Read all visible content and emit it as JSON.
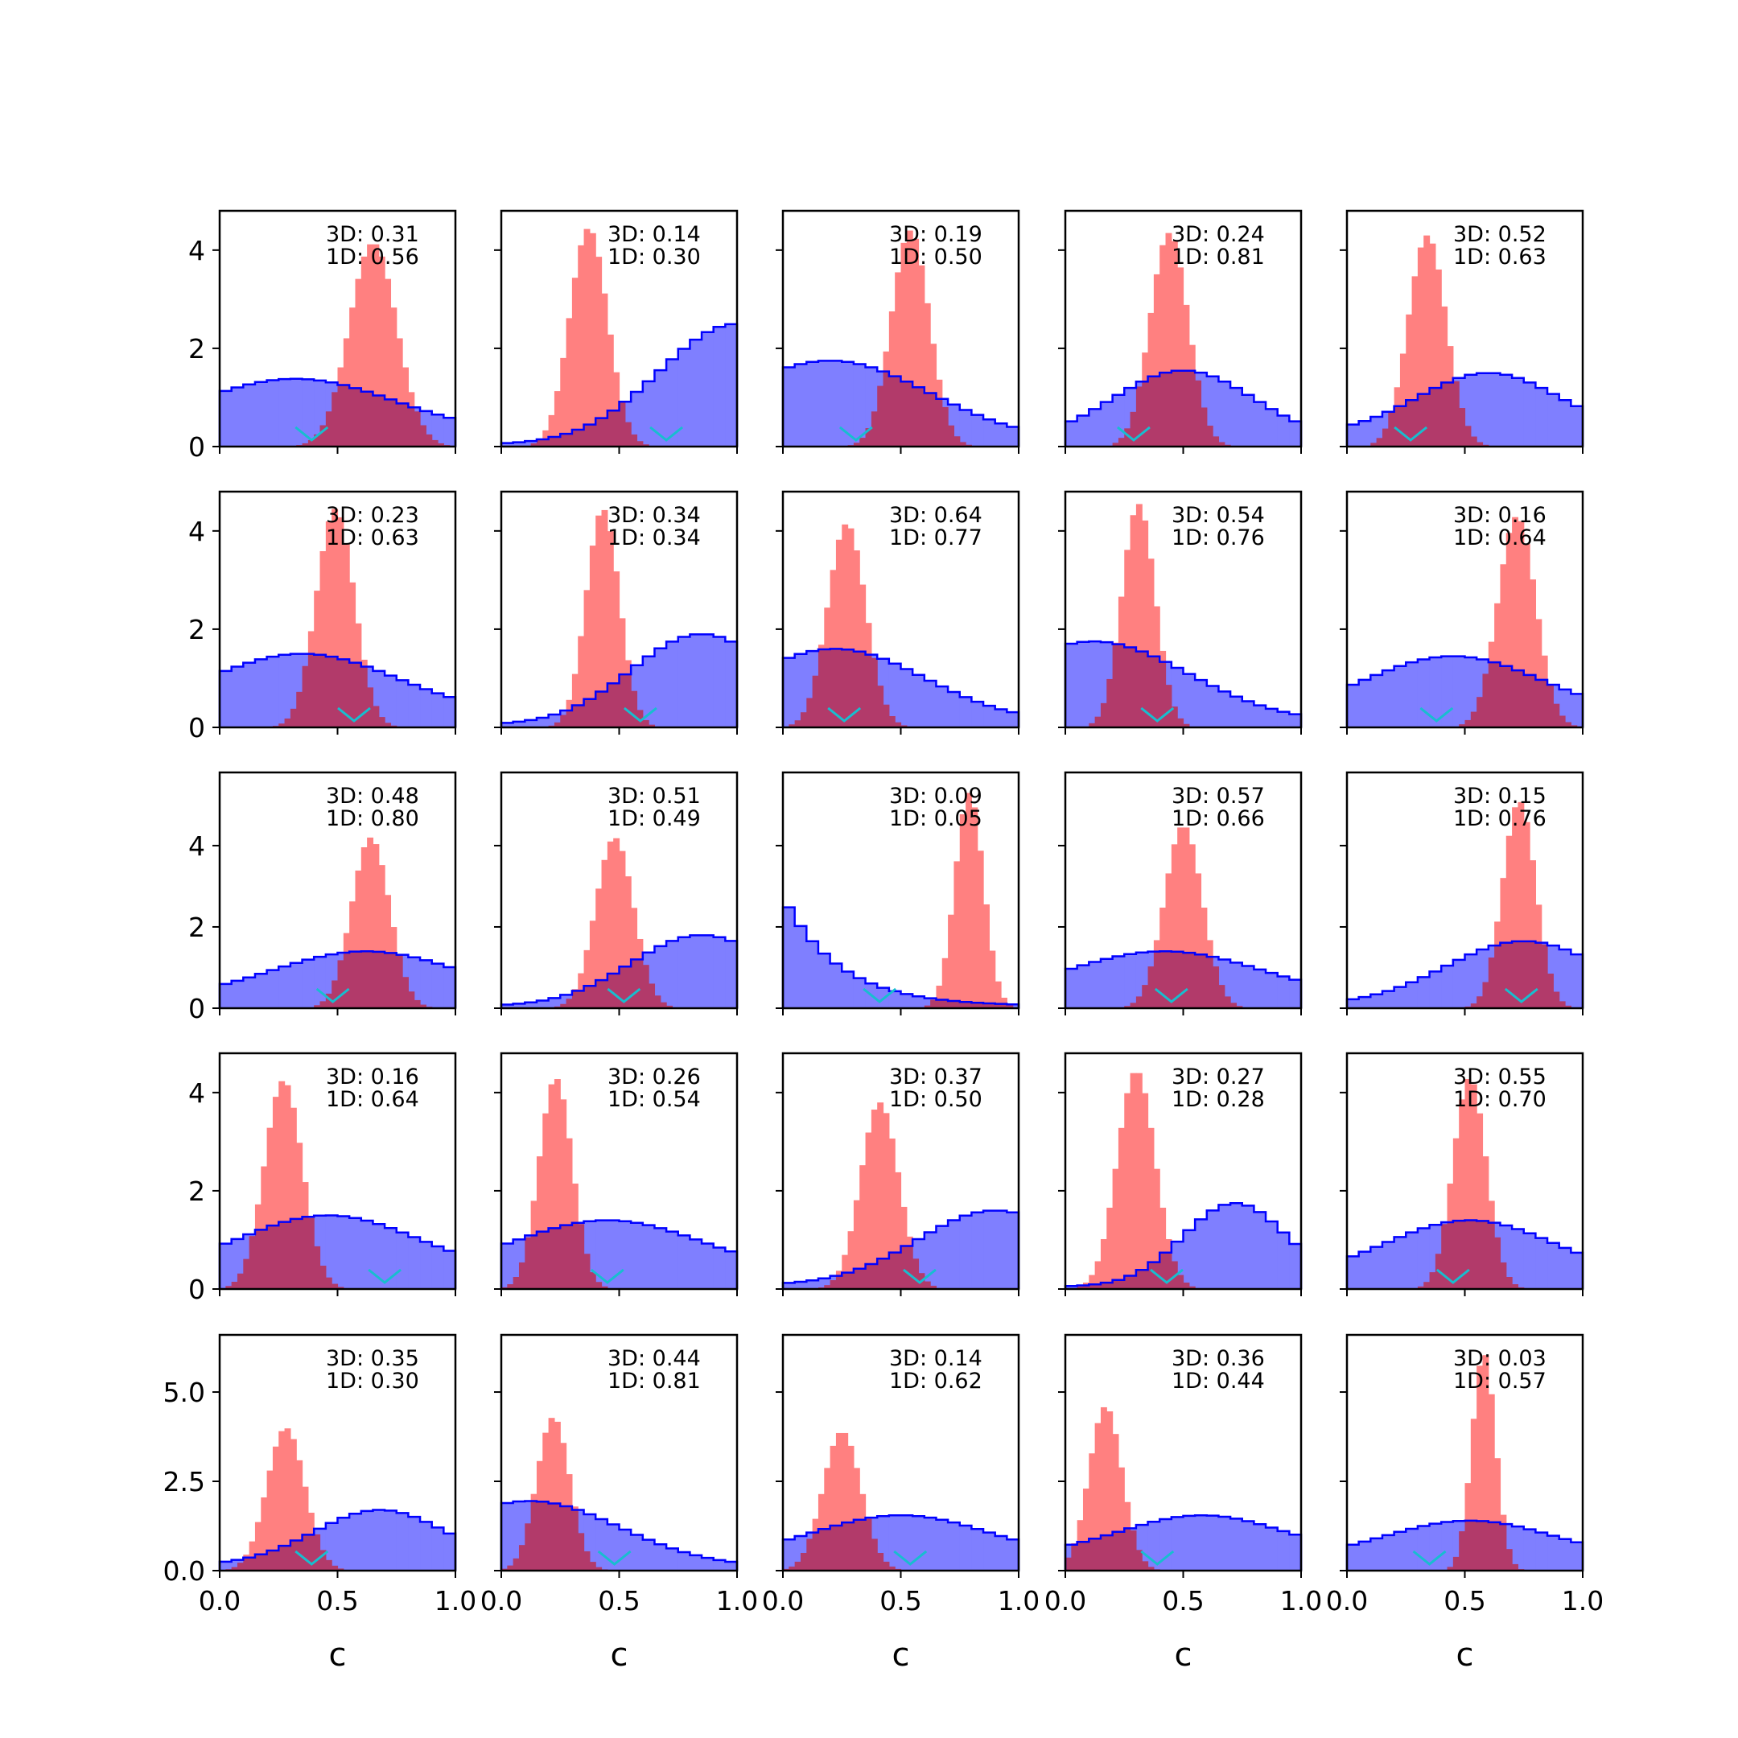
{
  "figure": {
    "rows": 5,
    "cols": 5,
    "x_axis_label": "c",
    "x_ticks": [
      "0.0",
      "0.5",
      "1.0"
    ],
    "colors": {
      "blue_fill": "#7f7fff",
      "blue_edge": "#0000ff",
      "red_fill": "#ff8080",
      "overlap": "#b23a6a",
      "marker": "#17becf",
      "axes": "#000000"
    }
  },
  "chart_data": {
    "type": "histogram-grid",
    "rows": [
      {
        "ylim": [
          0,
          4.8
        ],
        "yticks": [
          {
            "v": 0,
            "label": "0"
          },
          {
            "v": 2,
            "label": "2"
          },
          {
            "v": 4,
            "label": "4"
          }
        ]
      },
      {
        "ylim": [
          0,
          4.8
        ],
        "yticks": [
          {
            "v": 0,
            "label": "0"
          },
          {
            "v": 2,
            "label": "2"
          },
          {
            "v": 4,
            "label": "4"
          }
        ]
      },
      {
        "ylim": [
          0,
          5.8
        ],
        "yticks": [
          {
            "v": 0,
            "label": "0"
          },
          {
            "v": 2,
            "label": "2"
          },
          {
            "v": 4,
            "label": "4"
          }
        ]
      },
      {
        "ylim": [
          0,
          4.8
        ],
        "yticks": [
          {
            "v": 0,
            "label": "0"
          },
          {
            "v": 2,
            "label": "2"
          },
          {
            "v": 4,
            "label": "4"
          }
        ]
      },
      {
        "ylim": [
          0,
          6.6
        ],
        "yticks": [
          {
            "v": 0,
            "label": "0.0"
          },
          {
            "v": 2.5,
            "label": "2.5"
          },
          {
            "v": 5.0,
            "label": "5.0"
          }
        ]
      }
    ],
    "panels": [
      {
        "row": 0,
        "col": 0,
        "label_3d": "3D: 0.31",
        "label_1d": "1D: 0.56",
        "marker": 0.39,
        "blue": {
          "type": "hump",
          "mu": 0.32,
          "sigma": 0.42,
          "h": 1.38,
          "min": 0.25
        },
        "red": {
          "mu": 0.65,
          "sigma": 0.1,
          "h": 4.15
        }
      },
      {
        "row": 0,
        "col": 1,
        "label_3d": "3D: 0.14",
        "label_1d": "1D: 0.30",
        "marker": 0.7,
        "blue": {
          "type": "hump",
          "mu": 1.0,
          "sigma": 0.33,
          "h": 2.5,
          "min": 0.04
        },
        "red": {
          "mu": 0.37,
          "sigma": 0.08,
          "h": 4.45
        }
      },
      {
        "row": 0,
        "col": 2,
        "label_3d": "3D: 0.19",
        "label_1d": "1D: 0.50",
        "marker": 0.31,
        "blue": {
          "type": "hump",
          "mu": 0.2,
          "sigma": 0.42,
          "h": 1.75,
          "min": 0.1
        },
        "red": {
          "mu": 0.54,
          "sigma": 0.08,
          "h": 4.4
        }
      },
      {
        "row": 0,
        "col": 3,
        "label_3d": "3D: 0.24",
        "label_1d": "1D: 0.81",
        "marker": 0.29,
        "blue": {
          "type": "hump",
          "mu": 0.5,
          "sigma": 0.3,
          "h": 1.55,
          "min": 0.1
        },
        "red": {
          "mu": 0.44,
          "sigma": 0.08,
          "h": 4.35
        }
      },
      {
        "row": 0,
        "col": 4,
        "label_3d": "3D: 0.52",
        "label_1d": "1D: 0.63",
        "marker": 0.27,
        "blue": {
          "type": "hump",
          "mu": 0.6,
          "sigma": 0.3,
          "h": 1.5,
          "min": 0.25
        },
        "red": {
          "mu": 0.34,
          "sigma": 0.08,
          "h": 4.3
        }
      },
      {
        "row": 1,
        "col": 0,
        "label_3d": "3D: 0.23",
        "label_1d": "1D: 0.63",
        "marker": 0.57,
        "blue": {
          "type": "hump",
          "mu": 0.35,
          "sigma": 0.4,
          "h": 1.5,
          "min": 0.25
        },
        "red": {
          "mu": 0.49,
          "sigma": 0.08,
          "h": 4.45
        }
      },
      {
        "row": 1,
        "col": 1,
        "label_3d": "3D: 0.34",
        "label_1d": "1D: 0.34",
        "marker": 0.59,
        "blue": {
          "type": "hump",
          "mu": 0.85,
          "sigma": 0.3,
          "h": 1.9,
          "min": 0.05
        },
        "red": {
          "mu": 0.43,
          "sigma": 0.07,
          "h": 4.45
        }
      },
      {
        "row": 1,
        "col": 2,
        "label_3d": "3D: 0.64",
        "label_1d": "1D: 0.77",
        "marker": 0.26,
        "blue": {
          "type": "hump",
          "mu": 0.22,
          "sigma": 0.38,
          "h": 1.6,
          "min": 0.1
        },
        "red": {
          "mu": 0.27,
          "sigma": 0.08,
          "h": 4.15
        }
      },
      {
        "row": 1,
        "col": 3,
        "label_3d": "3D: 0.54",
        "label_1d": "1D: 0.76",
        "marker": 0.39,
        "blue": {
          "type": "hump",
          "mu": 0.12,
          "sigma": 0.4,
          "h": 1.75,
          "min": 0.1
        },
        "red": {
          "mu": 0.31,
          "sigma": 0.07,
          "h": 4.55
        }
      },
      {
        "row": 1,
        "col": 4,
        "label_3d": "3D: 0.16",
        "label_1d": "1D: 0.64",
        "marker": 0.38,
        "blue": {
          "type": "hump",
          "mu": 0.45,
          "sigma": 0.38,
          "h": 1.45,
          "min": 0.2
        },
        "red": {
          "mu": 0.72,
          "sigma": 0.08,
          "h": 4.3
        }
      },
      {
        "row": 2,
        "col": 0,
        "label_3d": "3D: 0.48",
        "label_1d": "1D: 0.80",
        "marker": 0.48,
        "blue": {
          "type": "hump",
          "mu": 0.62,
          "sigma": 0.4,
          "h": 1.4,
          "min": 0.2
        },
        "red": {
          "mu": 0.64,
          "sigma": 0.08,
          "h": 4.2
        }
      },
      {
        "row": 2,
        "col": 1,
        "label_3d": "3D: 0.51",
        "label_1d": "1D: 0.49",
        "marker": 0.52,
        "blue": {
          "type": "hump",
          "mu": 0.85,
          "sigma": 0.3,
          "h": 1.8,
          "min": 0.05
        },
        "red": {
          "mu": 0.48,
          "sigma": 0.08,
          "h": 4.2
        }
      },
      {
        "row": 2,
        "col": 2,
        "label_3d": "3D: 0.09",
        "label_1d": "1D: 0.05",
        "marker": 0.41,
        "blue": {
          "type": "decay",
          "h": 2.75,
          "rate": 4.2,
          "min": 0.05
        },
        "red": {
          "mu": 0.79,
          "sigma": 0.06,
          "h": 5.3
        }
      },
      {
        "row": 2,
        "col": 3,
        "label_3d": "3D: 0.57",
        "label_1d": "1D: 0.66",
        "marker": 0.45,
        "blue": {
          "type": "hump",
          "mu": 0.42,
          "sigma": 0.42,
          "h": 1.4,
          "min": 0.2
        },
        "red": {
          "mu": 0.5,
          "sigma": 0.08,
          "h": 4.5
        }
      },
      {
        "row": 2,
        "col": 4,
        "label_3d": "3D: 0.15",
        "label_1d": "1D: 0.76",
        "marker": 0.74,
        "blue": {
          "type": "hump",
          "mu": 0.75,
          "sigma": 0.33,
          "h": 1.65,
          "min": 0.08
        },
        "red": {
          "mu": 0.73,
          "sigma": 0.07,
          "h": 5.1
        }
      },
      {
        "row": 3,
        "col": 0,
        "label_3d": "3D: 0.16",
        "label_1d": "1D: 0.64",
        "marker": 0.7,
        "blue": {
          "type": "hump",
          "mu": 0.46,
          "sigma": 0.38,
          "h": 1.5,
          "min": 0.3
        },
        "red": {
          "mu": 0.27,
          "sigma": 0.08,
          "h": 4.25
        }
      },
      {
        "row": 3,
        "col": 1,
        "label_3d": "3D: 0.26",
        "label_1d": "1D: 0.54",
        "marker": 0.45,
        "blue": {
          "type": "hump",
          "mu": 0.45,
          "sigma": 0.4,
          "h": 1.4,
          "min": 0.3
        },
        "red": {
          "mu": 0.23,
          "sigma": 0.07,
          "h": 4.3
        }
      },
      {
        "row": 3,
        "col": 2,
        "label_3d": "3D: 0.37",
        "label_1d": "1D: 0.50",
        "marker": 0.58,
        "blue": {
          "type": "hump",
          "mu": 0.9,
          "sigma": 0.33,
          "h": 1.6,
          "min": 0.08
        },
        "red": {
          "mu": 0.41,
          "sigma": 0.08,
          "h": 3.8
        }
      },
      {
        "row": 3,
        "col": 3,
        "label_3d": "3D: 0.27",
        "label_1d": "1D: 0.28",
        "marker": 0.43,
        "blue": {
          "type": "hump",
          "mu": 0.72,
          "sigma": 0.22,
          "h": 1.75,
          "min": 0.05
        },
        "red": {
          "mu": 0.3,
          "sigma": 0.08,
          "h": 4.45
        }
      },
      {
        "row": 3,
        "col": 4,
        "label_3d": "3D: 0.55",
        "label_1d": "1D: 0.70",
        "marker": 0.45,
        "blue": {
          "type": "hump",
          "mu": 0.52,
          "sigma": 0.36,
          "h": 1.4,
          "min": 0.2
        },
        "red": {
          "mu": 0.52,
          "sigma": 0.07,
          "h": 4.3
        }
      },
      {
        "row": 4,
        "col": 0,
        "label_3d": "3D: 0.35",
        "label_1d": "1D: 0.30",
        "marker": 0.39,
        "blue": {
          "type": "hump",
          "mu": 0.68,
          "sigma": 0.28,
          "h": 1.7,
          "min": 0.15
        },
        "red": {
          "mu": 0.28,
          "sigma": 0.08,
          "h": 4.0
        }
      },
      {
        "row": 4,
        "col": 1,
        "label_3d": "3D: 0.44",
        "label_1d": "1D: 0.81",
        "marker": 0.48,
        "blue": {
          "type": "hump",
          "mu": 0.12,
          "sigma": 0.38,
          "h": 1.95,
          "min": 0.1
        },
        "red": {
          "mu": 0.22,
          "sigma": 0.07,
          "h": 4.3
        }
      },
      {
        "row": 4,
        "col": 2,
        "label_3d": "3D: 0.14",
        "label_1d": "1D: 0.62",
        "marker": 0.54,
        "blue": {
          "type": "hump",
          "mu": 0.5,
          "sigma": 0.38,
          "h": 1.55,
          "min": 0.3
        },
        "red": {
          "mu": 0.25,
          "sigma": 0.08,
          "h": 3.9
        }
      },
      {
        "row": 4,
        "col": 3,
        "label_3d": "3D: 0.36",
        "label_1d": "1D: 0.44",
        "marker": 0.39,
        "blue": {
          "type": "hump",
          "mu": 0.58,
          "sigma": 0.35,
          "h": 1.55,
          "min": 0.4
        },
        "red": {
          "mu": 0.17,
          "sigma": 0.07,
          "h": 4.6
        }
      },
      {
        "row": 4,
        "col": 4,
        "label_3d": "3D: 0.03",
        "label_1d": "1D: 0.57",
        "marker": 0.35,
        "blue": {
          "type": "hump",
          "mu": 0.52,
          "sigma": 0.36,
          "h": 1.4,
          "min": 0.3
        },
        "red": {
          "mu": 0.58,
          "sigma": 0.05,
          "h": 6.1
        }
      }
    ]
  }
}
